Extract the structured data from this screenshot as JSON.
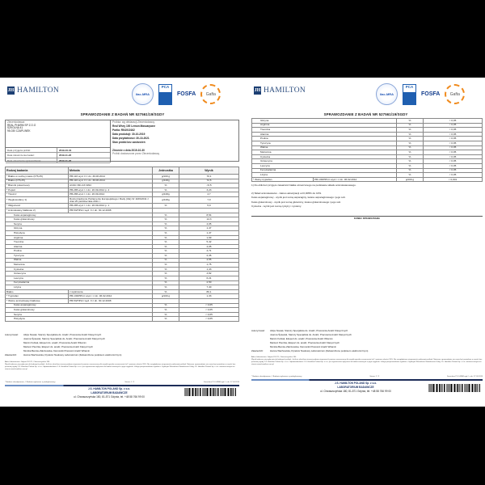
{
  "brand": {
    "name": "HAMILTON",
    "mark": "JH",
    "logos": [
      "ilac-MRA",
      "PCA",
      "FOSFA",
      "Gafta"
    ]
  },
  "report_title": "SPRAWOZDANIE Z BADAŃ NR 527561/19/SGDY",
  "client": {
    "label": "Zleceniodawca",
    "name": "REAL PHARM SP Z.O.O",
    "street": "SZKOLNA 41",
    "city": "95-030 CZAPLINEK"
  },
  "dates": [
    {
      "label": "Data przyjęcia próbki:",
      "value": "2019-10-31"
    },
    {
      "label": "Data zakończenia badań:",
      "value": "2019-11-22"
    },
    {
      "label": "Data utworzenia sprawozdania:",
      "value": "2019-11-22"
    }
  ],
  "sample": {
    "label": "Próbka: wg deklaracji Zleceniodawcy",
    "name": "Real Whey 100 Lemon Mascarpone",
    "batch": "Partia: RN1910162",
    "production": "Data produkcji: 30-10-2019",
    "expiry": "Data przydatności: 30-10-2021",
    "state": "Stan próbki bez zastrzeżeń",
    "order": "Zlecenie z dnia 2019-10-30",
    "delivered": "Próbki dostarczone przez Zleceniodawcę"
  },
  "table_headers": [
    "Rodzaj badania",
    "Metoda",
    "Jednostka",
    "Wynik"
  ],
  "page1_rows": [
    {
      "name": "* Białko w suchej masie (N*6,25)",
      "method": "PB-116 wyd. II z dn. 30.06.2014",
      "unit": "g/100 g",
      "result": "76,1"
    },
    {
      "name": "* Białko (N*6,25)",
      "method": "PB-116 wyd. II z dn. 30.06.2014",
      "unit": "g/100g",
      "result": "72,5"
    },
    {
      "name": "* Błonnik pokarmowy",
      "method": "AOAC 991.43:1994",
      "unit": "%",
      "result": "<0,5"
    },
    {
      "name": "* Popiół",
      "method": "PB-285 wyd. I z dn. 26.09.2014 p. 2",
      "unit": "%",
      "result": "3,23"
    },
    {
      "name": "* Tłuszcz",
      "method": "PB-286 wyd. I z dn. 26.09.2014",
      "unit": "g/100g",
      "result": "4,7"
    },
    {
      "name": "* Węglowodany 1)",
      "method": "Rozporządzenie Parlamentu Europejskiego i Rady (UE) Nr 1169/2011 z dnia 25 października 2011 r.",
      "unit": "g/100g",
      "result": "7,0",
      "tall": true
    },
    {
      "name": "* Wilgotność",
      "method": "PB-285 wyd. I z dn. 26.09.2014 p. 1",
      "unit": "%",
      "result": "5,0"
    },
    {
      "name": "* Aminokwasy białkowe 2)",
      "method": "PB-53/HPLC wyd. II z dn. 30.12.2008",
      "unit": "",
      "result": ""
    },
    {
      "name": "Kwas asparaginowy",
      "unit": "%",
      "result": "8,54",
      "sub": true
    },
    {
      "name": "Kwas glutaminowy",
      "unit": "%",
      "result": "14,3",
      "sub": true
    },
    {
      "name": "Seryna",
      "unit": "%",
      "result": "4,05",
      "sub": true
    },
    {
      "name": "Glicyna",
      "unit": "%",
      "result": "1,47",
      "sub": true
    },
    {
      "name": "Histydyna",
      "unit": "%",
      "result": "1,47",
      "sub": true
    },
    {
      "name": "Arginina",
      "unit": "%",
      "result": "1,99",
      "sub": true
    },
    {
      "name": "Treonina",
      "unit": "%",
      "result": "5,42",
      "sub": true
    },
    {
      "name": "Alanina",
      "unit": "%",
      "result": "4,05",
      "sub": true
    },
    {
      "name": "Prolina",
      "unit": "%",
      "result": "4,71",
      "sub": true
    },
    {
      "name": "Tyrozyna",
      "unit": "%",
      "result": "2,35",
      "sub": true
    },
    {
      "name": "Walina",
      "unit": "%",
      "result": "4,55",
      "sub": true
    },
    {
      "name": "Metionina",
      "unit": "%",
      "result": "1,75",
      "sub": true
    },
    {
      "name": "Cysteina",
      "unit": "%",
      "result": "1,43",
      "sub": true
    },
    {
      "name": "Izoleucyna",
      "unit": "%",
      "result": "4,82",
      "sub": true
    },
    {
      "name": "Leucyna",
      "unit": "%",
      "result": "6,21",
      "sub": true
    },
    {
      "name": "Fenyloalanina",
      "unit": "%",
      "result": "2,50",
      "sub": true
    },
    {
      "name": "Lizyna",
      "unit": "%",
      "result": "7,40",
      "sub": true
    },
    {
      "name": "Białko",
      "method": "z wyliczenia",
      "unit": "%",
      "result": "80,1"
    },
    {
      "name": "* Tryptofan",
      "method": "PB-136/HPLC wyd. I z dn. 06.02.2012",
      "unit": "g/100 g",
      "result": "1,33"
    },
    {
      "name": "* Wolne aminokwasy białkowe",
      "method": "PB-53/HPLC wyd. II z dn. 30.12.2008",
      "unit": "",
      "result": ""
    },
    {
      "name": "Kwas asparaginowy",
      "unit": "%",
      "result": "< 0,05",
      "sub": true
    },
    {
      "name": "Kwas glutaminowy",
      "unit": "%",
      "result": "< 0,05",
      "sub": true
    },
    {
      "name": "Seryna",
      "unit": "%",
      "result": "< 0,05",
      "sub": true
    },
    {
      "name": "Histydyna",
      "unit": "%",
      "result": "< 0,05",
      "sub": true
    }
  ],
  "page2_rows": [
    {
      "name": "Glicyna",
      "unit": "%",
      "result": "< 0,05",
      "sub": true
    },
    {
      "name": "Arginina",
      "unit": "%",
      "result": "< 0,05",
      "sub": true
    },
    {
      "name": "Treonina",
      "unit": "%",
      "result": "< 0,05",
      "sub": true
    },
    {
      "name": "Alanina",
      "unit": "%",
      "result": "< 0,05",
      "sub": true
    },
    {
      "name": "Prolina",
      "unit": "%",
      "result": "< 0,05",
      "sub": true
    },
    {
      "name": "Tyrozyna",
      "unit": "%",
      "result": "< 0,05",
      "sub": true
    },
    {
      "name": "Walina",
      "unit": "%",
      "result": "< 0,05",
      "sub": true
    },
    {
      "name": "Metionina",
      "unit": "%",
      "result": "< 0,05",
      "sub": true
    },
    {
      "name": "Cysteina",
      "unit": "%",
      "result": "< 0,05",
      "sub": true
    },
    {
      "name": "Izoleucyna",
      "unit": "%",
      "result": "< 0,05",
      "sub": true
    },
    {
      "name": "Leucyna",
      "unit": "%",
      "result": "< 0,05",
      "sub": true
    },
    {
      "name": "Fenyloalanina",
      "unit": "%",
      "result": "< 0,05",
      "sub": true
    },
    {
      "name": "Lizyna",
      "unit": "%",
      "result": "< 0,05",
      "sub": true
    },
    {
      "name": "* Wolny tryptofan",
      "method": "PB-136/HPLC wyd. I z dn. 06.02.2012",
      "unit": "g/100 g",
      "result": "< 0,001"
    }
  ],
  "notes": [
    "1) Do obliczeń przyjęto zawartość białka oznaczonego na podstawie składu aminokwasowego.",
    "2) Skład aminokwasów - zakres akredytacji od 0,005% do 10%.",
    "Kwas asparaginowy - wynik jest sumą asparaginy, kwasu asparaginowego i jego soli.",
    "Kwas glutaminowy - wynik jest sumą glutaminy, kwasu glutaminowego i jego soli.",
    "Cysteina - wynik jest sumą cystyny i cysteiny."
  ],
  "end_label": "KONIEC SPRAWOZDANIA",
  "authorized_label": "Autoryzował:",
  "authorized": [
    "Alicja Nowak, Starszy Specjalista ds. Analiz, Pracownia Analiz Klasycznych",
    "Joanna Śpiewak, Starszy Specjalista ds. Analiz, Pracownia Analiz Klasycznych",
    "Marcin Kubiak, Ekspert ds. analiz, Pracownia Analiz Witamin",
    "Mariusz Pieczka, Ekspert ds. analiz, Pracownia Analiz Klasycznych",
    "Monika Bemke-Zakrzewska, Kierownik Pracowni Analiz Witamin"
  ],
  "approved_label": "Zatwierdził:",
  "approved": "Hanna Wachowska, Dyrektor Naukowy Laboratorium (Zatwierdzone podpisem elektronicznym)",
  "lab_address": "Adres laboratorium: Gdynia 81-571, Chwaszczyńska 180",
  "disclaimer": "Wyniki odnoszą się wyłącznie do badanych próbek. Jeśli nie określono inaczej podano niepewność pomiaru rozszerzoną dla współczynnika rozszerzenia k=2 i poziomu ufności 95%. Nie uwzględniono niepewności pobierania próbek. Niniejsze sprawozdanie nie może być powielane w części bez pisemnej zgody J.S. Hamilton Poland Sp. z o.o. Odpowiedzialność J.S. Hamilton Poland Sp. z o.o. jest ograniczona wyłącznie do badań zawartych w jego oryginale. Usługa przeprowadzona zgodnie z Ogólnymi Warunkami Świadczenia Usług J.S. Hamilton Poland Sp. z o.o. zamieszczonymi na stronie www.hamilton.com.pl",
  "legend": "* Badanie akredytowane; # Badanie wykonane u podwykonawcy",
  "page_labels": [
    "Strona: 1 / 2",
    "Strona: 2 / 2"
  ],
  "form_id": "Formularz PO-14/BM wyd. I z dn. 27.03.2019",
  "company": {
    "name": "J.S. HAMILTON POLAND Sp. z o.o.",
    "lab": "LABORATORIUM BADAWCZE",
    "address": "ul. Chwaszczyńska 180, 81-571 Gdynia, tel. +48 58 766 99 00"
  }
}
